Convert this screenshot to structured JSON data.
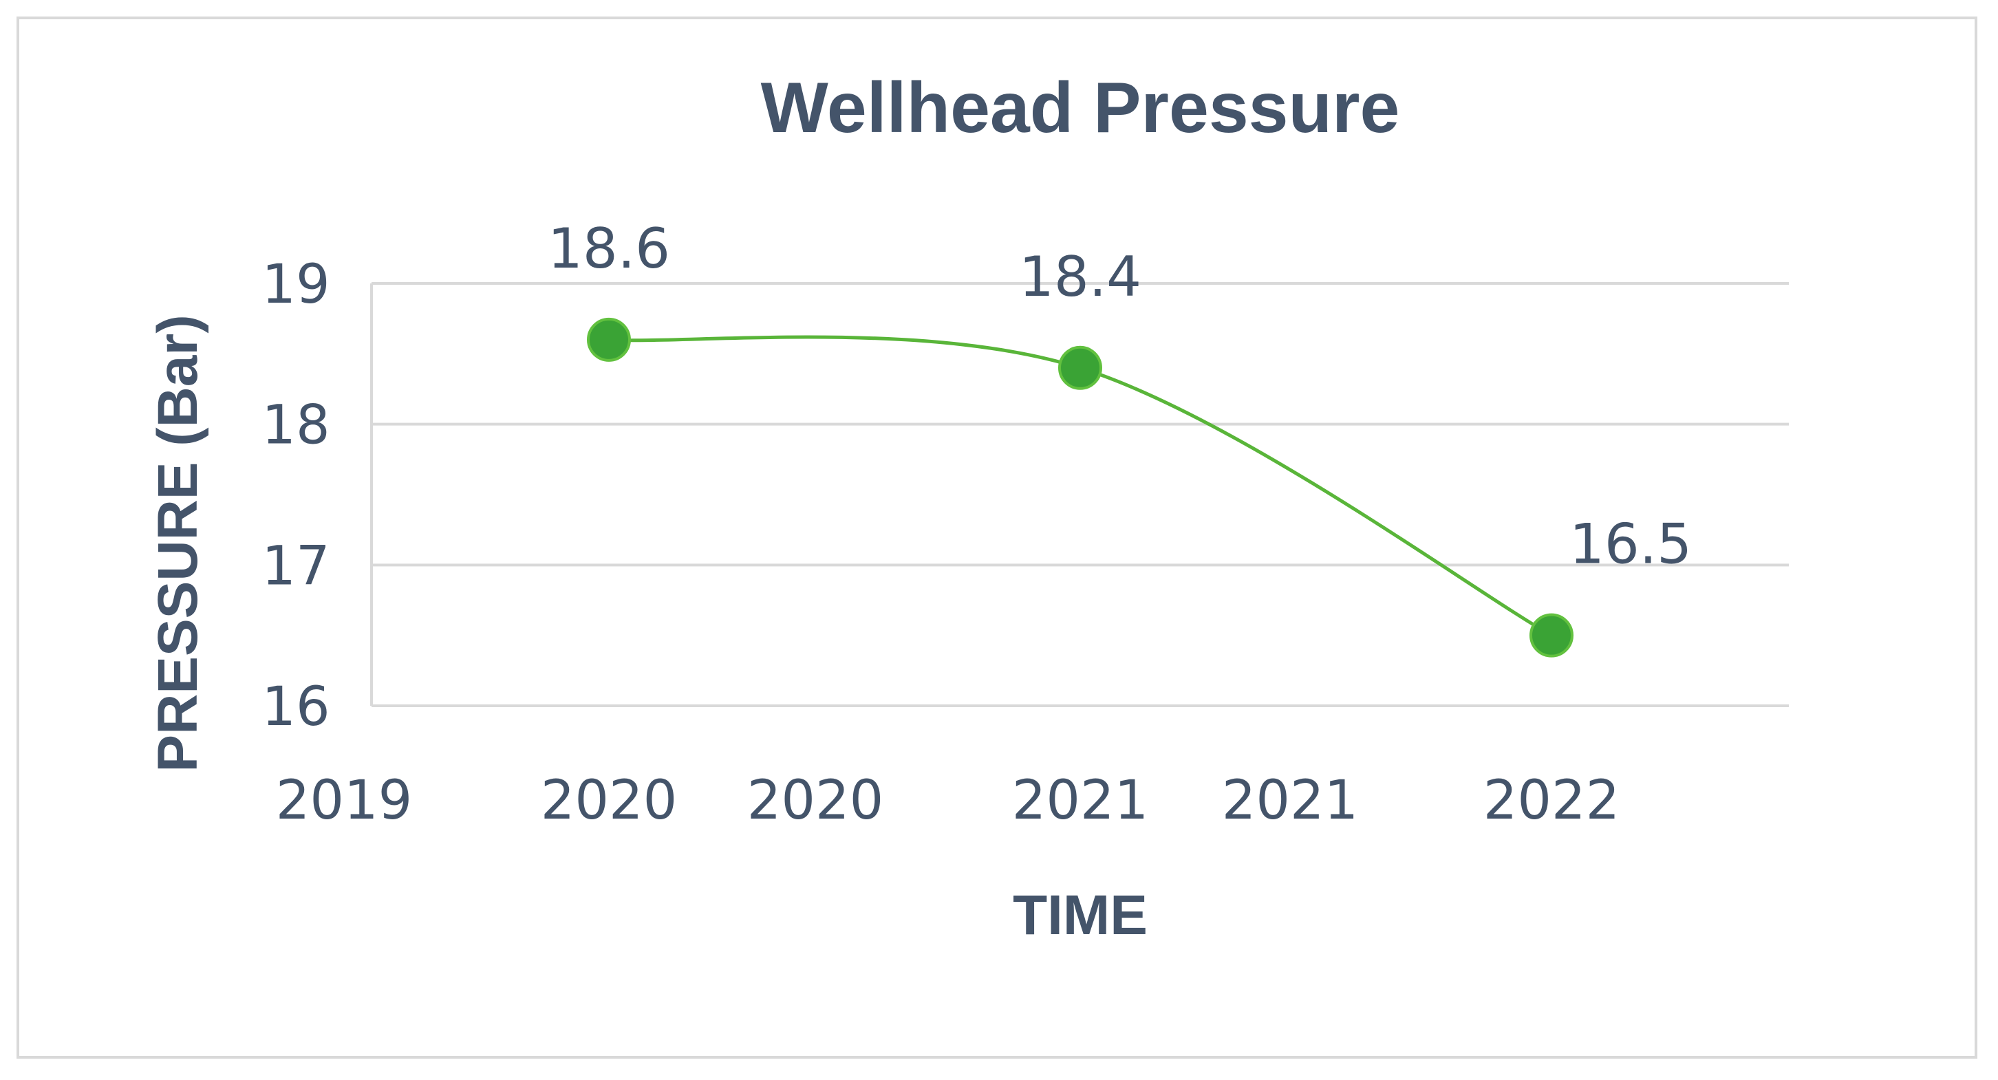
{
  "chart_data": {
    "type": "line",
    "title": "Wellhead Pressure",
    "xlabel": "TIME",
    "ylabel": "PRESSURE (Bar)",
    "x_tick_labels": [
      "2019",
      "2020",
      "2020",
      "2021",
      "2021",
      "2022"
    ],
    "y_ticks": [
      16,
      17,
      18,
      19
    ],
    "ylim": [
      16,
      19
    ],
    "smooth": true,
    "grid": true,
    "legend": "none",
    "colors": {
      "series": "#59b539",
      "marker": "#3aa335",
      "text": "#44546a",
      "grid": "#d9d9d9"
    },
    "series": [
      {
        "x_positions": [
          1,
          3,
          5
        ],
        "values": [
          18.6,
          18.4,
          16.5
        ],
        "data_labels": [
          "18.6",
          "18.4",
          "16.5"
        ]
      }
    ]
  }
}
